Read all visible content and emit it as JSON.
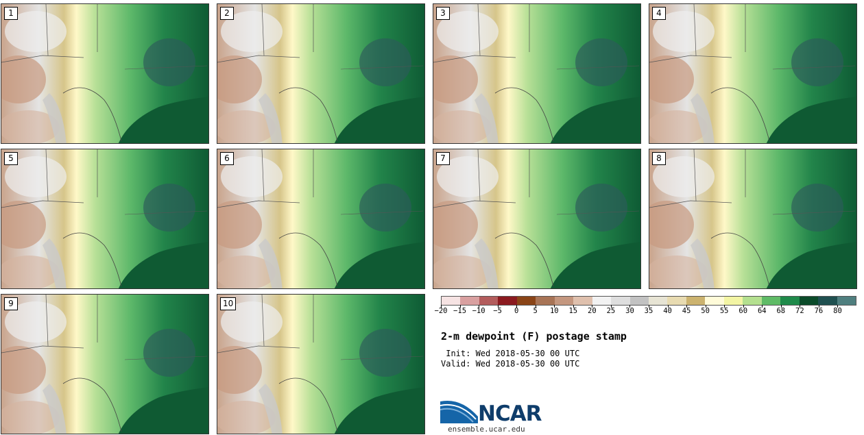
{
  "panels": [
    {
      "label": "1"
    },
    {
      "label": "2"
    },
    {
      "label": "3"
    },
    {
      "label": "4"
    },
    {
      "label": "5"
    },
    {
      "label": "6"
    },
    {
      "label": "7"
    },
    {
      "label": "8"
    },
    {
      "label": "9"
    },
    {
      "label": "10"
    }
  ],
  "colorbar": {
    "colors": [
      "#f6e3e3",
      "#d9a0a0",
      "#b35c5c",
      "#8b1a1f",
      "#8a4417",
      "#a87456",
      "#c4977f",
      "#dfc0ad",
      "#f2f2f2",
      "#dedede",
      "#c2c2c2",
      "#e7e4d4",
      "#e8dbb1",
      "#ccb36f",
      "#fffbd9",
      "#f3f5a4",
      "#b4e08f",
      "#5fbb66",
      "#1f8a4a",
      "#0b4b2a",
      "#1f5050",
      "#4f7f7f"
    ],
    "ticks": [
      "−20",
      "−15",
      "−10",
      "−5",
      "0",
      "5",
      "10",
      "15",
      "20",
      "25",
      "30",
      "35",
      "40",
      "45",
      "50",
      "55",
      "60",
      "64",
      "68",
      "72",
      "76",
      "80"
    ]
  },
  "title": "2-m dewpoint (F) postage stamp",
  "init": " Init: Wed 2018-05-30 00 UTC",
  "valid": "Valid: Wed 2018-05-30 00 UTC",
  "logo": {
    "text": "NCAR",
    "site": "ensemble.ucar.edu",
    "brand_color": "#0f3d6b"
  }
}
